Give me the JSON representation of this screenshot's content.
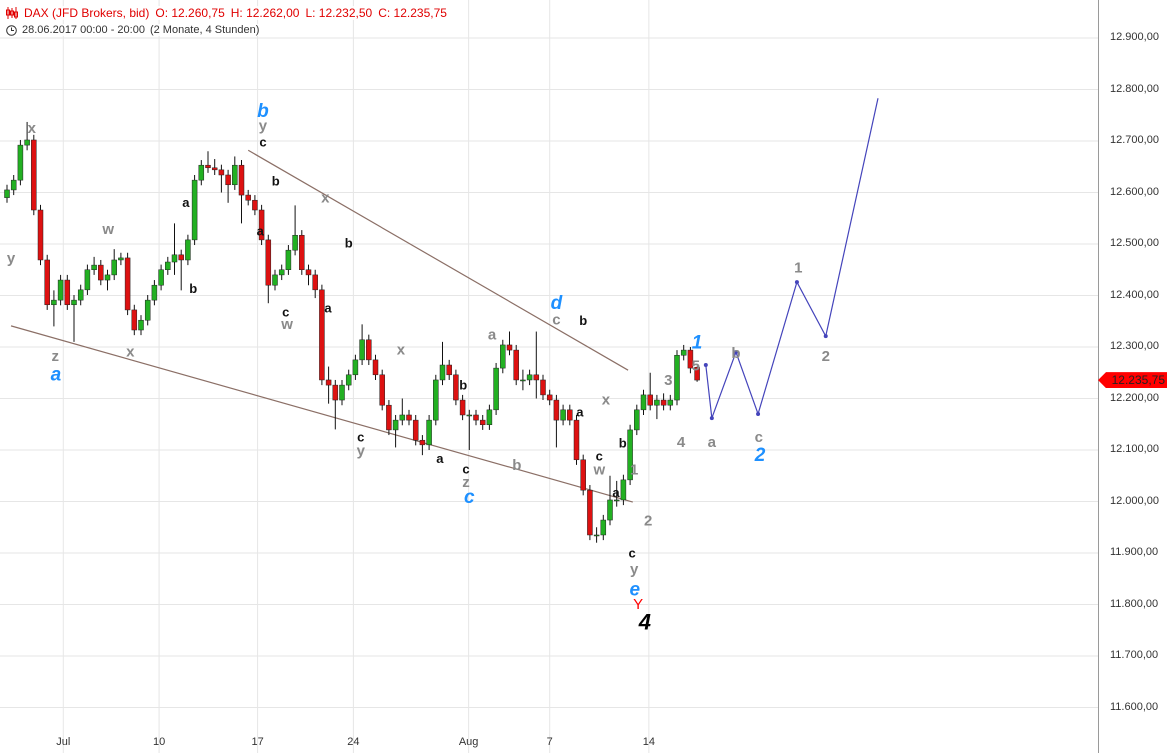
{
  "header": {
    "instrument": "DAX (JFD Brokers, bid)",
    "open": "O: 12.260,75",
    "high": "H: 12.262,00",
    "low": "L: 12.232,50",
    "close": "C: 12.235,75",
    "datetime": "28.06.2017 00:00 - 20:00",
    "range": "(2 Monate, 4 Stunden)",
    "instrument_icon": "candlestick-icon",
    "time_icon": "clock-icon"
  },
  "colors": {
    "up": "#22b022",
    "down": "#dd1111",
    "grid": "#e6e6e6",
    "trend": "#8b6f66",
    "projection": "#4444bb",
    "header": "#e00000",
    "price_tag": "#ff0000",
    "label_gray": "#8a8a8a",
    "label_black": "#111111",
    "label_blue": "#1e90ff",
    "label_red": "#ff0000"
  },
  "chart_data": {
    "type": "candlestick",
    "ylim": [
      11550,
      12950
    ],
    "y_ticks": [
      {
        "value": 12900,
        "label": "12.900,00"
      },
      {
        "value": 12800,
        "label": "12.800,00"
      },
      {
        "value": 12700,
        "label": "12.700,00"
      },
      {
        "value": 12600,
        "label": "12.600,00"
      },
      {
        "value": 12500,
        "label": "12.500,00"
      },
      {
        "value": 12400,
        "label": "12.400,00"
      },
      {
        "value": 12300,
        "label": "12.300,00"
      },
      {
        "value": 12200,
        "label": "12.200,00"
      },
      {
        "value": 12100,
        "label": "12.100,00"
      },
      {
        "value": 12000,
        "label": "12.000,00"
      },
      {
        "value": 11900,
        "label": "11.900,00"
      },
      {
        "value": 11800,
        "label": "11.800,00"
      },
      {
        "value": 11700,
        "label": "11.700,00"
      },
      {
        "value": 11600,
        "label": "11.600,00"
      }
    ],
    "x_ticks": [
      {
        "bar": 8.4,
        "label": "Jul"
      },
      {
        "bar": 22.7,
        "label": "10"
      },
      {
        "bar": 37.4,
        "label": "17"
      },
      {
        "bar": 51.7,
        "label": "24"
      },
      {
        "bar": 68.9,
        "label": "Aug"
      },
      {
        "bar": 81,
        "label": "7"
      },
      {
        "bar": 95.8,
        "label": "14"
      }
    ],
    "last_price": {
      "value": 12235.75,
      "label": "12.235,75"
    },
    "ohlc": [
      [
        12590,
        12615,
        12580,
        12605
      ],
      [
        12605,
        12634,
        12595,
        12624
      ],
      [
        12624,
        12702,
        12614,
        12692
      ],
      [
        12692,
        12737,
        12682,
        12702
      ],
      [
        12702,
        12712,
        12556,
        12566
      ],
      [
        12566,
        12576,
        12459,
        12469
      ],
      [
        12469,
        12479,
        12372,
        12382
      ],
      [
        12382,
        12410,
        12340,
        12391
      ],
      [
        12391,
        12440,
        12381,
        12430
      ],
      [
        12430,
        12440,
        12372,
        12382
      ],
      [
        12382,
        12401,
        12310,
        12391
      ],
      [
        12391,
        12421,
        12381,
        12411
      ],
      [
        12411,
        12460,
        12401,
        12450
      ],
      [
        12450,
        12475,
        12440,
        12459
      ],
      [
        12459,
        12469,
        12420,
        12430
      ],
      [
        12430,
        12450,
        12410,
        12440
      ],
      [
        12440,
        12490,
        12430,
        12469
      ],
      [
        12469,
        12483,
        12459,
        12473
      ],
      [
        12473,
        12483,
        12362,
        12372
      ],
      [
        12372,
        12382,
        12323,
        12333
      ],
      [
        12333,
        12362,
        12323,
        12352
      ],
      [
        12352,
        12401,
        12342,
        12391
      ],
      [
        12391,
        12430,
        12381,
        12420
      ],
      [
        12420,
        12460,
        12410,
        12450
      ],
      [
        12450,
        12475,
        12440,
        12465
      ],
      [
        12465,
        12540,
        12440,
        12479
      ],
      [
        12479,
        12489,
        12410,
        12469
      ],
      [
        12469,
        12518,
        12459,
        12508
      ],
      [
        12508,
        12634,
        12498,
        12624
      ],
      [
        12624,
        12663,
        12614,
        12653
      ],
      [
        12653,
        12680,
        12638,
        12648
      ],
      [
        12648,
        12665,
        12634,
        12644
      ],
      [
        12644,
        12654,
        12600,
        12634
      ],
      [
        12634,
        12644,
        12580,
        12615
      ],
      [
        12615,
        12670,
        12605,
        12653
      ],
      [
        12653,
        12663,
        12540,
        12595
      ],
      [
        12595,
        12605,
        12575,
        12585
      ],
      [
        12585,
        12595,
        12556,
        12566
      ],
      [
        12566,
        12576,
        12498,
        12508
      ],
      [
        12508,
        12518,
        12385,
        12420
      ],
      [
        12420,
        12450,
        12410,
        12440
      ],
      [
        12440,
        12460,
        12430,
        12450
      ],
      [
        12450,
        12498,
        12440,
        12488
      ],
      [
        12488,
        12575,
        12478,
        12517
      ],
      [
        12517,
        12527,
        12440,
        12450
      ],
      [
        12450,
        12460,
        12420,
        12440
      ],
      [
        12440,
        12450,
        12395,
        12411
      ],
      [
        12411,
        12421,
        12226,
        12236
      ],
      [
        12236,
        12262,
        12190,
        12226
      ],
      [
        12226,
        12236,
        12140,
        12197
      ],
      [
        12197,
        12236,
        12187,
        12226
      ],
      [
        12226,
        12256,
        12216,
        12246
      ],
      [
        12246,
        12285,
        12236,
        12275
      ],
      [
        12275,
        12344,
        12265,
        12314
      ],
      [
        12314,
        12324,
        12265,
        12275
      ],
      [
        12275,
        12285,
        12236,
        12246
      ],
      [
        12246,
        12256,
        12177,
        12187
      ],
      [
        12187,
        12197,
        12129,
        12139
      ],
      [
        12139,
        12168,
        12105,
        12158
      ],
      [
        12158,
        12200,
        12148,
        12168
      ],
      [
        12168,
        12178,
        12148,
        12158
      ],
      [
        12158,
        12168,
        12109,
        12119
      ],
      [
        12119,
        12129,
        12090,
        12110
      ],
      [
        12110,
        12168,
        12100,
        12158
      ],
      [
        12158,
        12246,
        12148,
        12236
      ],
      [
        12236,
        12310,
        12226,
        12265
      ],
      [
        12265,
        12275,
        12236,
        12246
      ],
      [
        12246,
        12256,
        12187,
        12197
      ],
      [
        12197,
        12207,
        12158,
        12168
      ],
      [
        12168,
        12178,
        12100,
        12168
      ],
      [
        12168,
        12178,
        12148,
        12158
      ],
      [
        12158,
        12168,
        12139,
        12149
      ],
      [
        12149,
        12188,
        12139,
        12178
      ],
      [
        12178,
        12269,
        12168,
        12259
      ],
      [
        12259,
        12314,
        12249,
        12304
      ],
      [
        12304,
        12330,
        12284,
        12294
      ],
      [
        12294,
        12304,
        12226,
        12236
      ],
      [
        12236,
        12256,
        12216,
        12236
      ],
      [
        12236,
        12256,
        12226,
        12246
      ],
      [
        12246,
        12330,
        12200,
        12236
      ],
      [
        12236,
        12246,
        12197,
        12207
      ],
      [
        12207,
        12217,
        12187,
        12197
      ],
      [
        12197,
        12207,
        12105,
        12158
      ],
      [
        12158,
        12188,
        12148,
        12178
      ],
      [
        12178,
        12188,
        12148,
        12158
      ],
      [
        12158,
        12168,
        12071,
        12081
      ],
      [
        12081,
        12091,
        12012,
        12022
      ],
      [
        12022,
        12032,
        11925,
        11935
      ],
      [
        11935,
        11950,
        11920,
        11935
      ],
      [
        11935,
        11974,
        11925,
        11964
      ],
      [
        11964,
        12050,
        11954,
        12003
      ],
      [
        12003,
        12040,
        11990,
        12003
      ],
      [
        12003,
        12052,
        11993,
        12042
      ],
      [
        12042,
        12149,
        12032,
        12139
      ],
      [
        12139,
        12188,
        12129,
        12178
      ],
      [
        12178,
        12217,
        12168,
        12207
      ],
      [
        12207,
        12250,
        12177,
        12187
      ],
      [
        12187,
        12207,
        12160,
        12197
      ],
      [
        12197,
        12210,
        12177,
        12187
      ],
      [
        12187,
        12207,
        12177,
        12197
      ],
      [
        12197,
        12294,
        12187,
        12284
      ],
      [
        12284,
        12304,
        12274,
        12294
      ],
      [
        12294,
        12300,
        12249,
        12259
      ],
      [
        12260.75,
        12262,
        12232.5,
        12235.75
      ]
    ],
    "trendlines": [
      {
        "from": {
          "bar": 36,
          "price": 12682
        },
        "to": {
          "bar": 92.7,
          "price": 12255
        }
      },
      {
        "from": {
          "bar": 0.6,
          "price": 12341
        },
        "to": {
          "bar": 93.4,
          "price": 11999
        }
      }
    ],
    "projection": [
      {
        "bar": 104.3,
        "price": 12265
      },
      {
        "bar": 105.2,
        "price": 12162
      },
      {
        "bar": 108.8,
        "price": 12290
      },
      {
        "bar": 112.1,
        "price": 12170
      },
      {
        "bar": 117.9,
        "price": 12426
      },
      {
        "bar": 122.2,
        "price": 12321
      },
      {
        "bar": 130,
        "price": 12783
      }
    ],
    "wave_labels": [
      {
        "text": "x",
        "bar": 3.7,
        "price": 12726,
        "style": "gray"
      },
      {
        "text": "y",
        "bar": 0.6,
        "price": 12473,
        "style": "gray"
      },
      {
        "text": "z",
        "bar": 7.2,
        "price": 12283,
        "style": "gray"
      },
      {
        "text": "a",
        "bar": 7.3,
        "price": 12248,
        "style": "blue"
      },
      {
        "text": "w",
        "bar": 15.1,
        "price": 12530,
        "style": "gray"
      },
      {
        "text": "x",
        "bar": 18.4,
        "price": 12292,
        "style": "gray"
      },
      {
        "text": "a",
        "bar": 26.7,
        "price": 12581,
        "style": "black"
      },
      {
        "text": "b",
        "bar": 27.8,
        "price": 12414,
        "style": "black"
      },
      {
        "text": "b",
        "bar": 38.2,
        "price": 12760,
        "style": "blue"
      },
      {
        "text": "y",
        "bar": 38.2,
        "price": 12731,
        "style": "gray"
      },
      {
        "text": "c",
        "bar": 38.2,
        "price": 12698,
        "style": "black"
      },
      {
        "text": "b",
        "bar": 40.1,
        "price": 12622,
        "style": "black"
      },
      {
        "text": "a",
        "bar": 37.8,
        "price": 12525,
        "style": "black"
      },
      {
        "text": "c",
        "bar": 41.6,
        "price": 12368,
        "style": "black"
      },
      {
        "text": "w",
        "bar": 41.8,
        "price": 12345,
        "style": "gray"
      },
      {
        "text": "x",
        "bar": 47.5,
        "price": 12591,
        "style": "gray"
      },
      {
        "text": "b",
        "bar": 51.0,
        "price": 12502,
        "style": "black"
      },
      {
        "text": "a",
        "bar": 47.9,
        "price": 12376,
        "style": "black"
      },
      {
        "text": "x",
        "bar": 58.8,
        "price": 12296,
        "style": "gray"
      },
      {
        "text": "c",
        "bar": 52.8,
        "price": 12125,
        "style": "black"
      },
      {
        "text": "y",
        "bar": 52.8,
        "price": 12100,
        "style": "gray"
      },
      {
        "text": "b",
        "bar": 68.1,
        "price": 12226,
        "style": "black"
      },
      {
        "text": "a",
        "bar": 64.6,
        "price": 12084,
        "style": "black"
      },
      {
        "text": "a",
        "bar": 72.4,
        "price": 12325,
        "style": "gray"
      },
      {
        "text": "c",
        "bar": 68.5,
        "price": 12063,
        "style": "black"
      },
      {
        "text": "z",
        "bar": 68.5,
        "price": 12038,
        "style": "gray"
      },
      {
        "text": "c",
        "bar": 69.0,
        "price": 12010,
        "style": "blue"
      },
      {
        "text": "b",
        "bar": 76.1,
        "price": 12071,
        "style": "gray"
      },
      {
        "text": "d",
        "bar": 82.0,
        "price": 12387,
        "style": "blue"
      },
      {
        "text": "c",
        "bar": 82.0,
        "price": 12354,
        "style": "gray"
      },
      {
        "text": "b",
        "bar": 86.0,
        "price": 12352,
        "style": "black"
      },
      {
        "text": "a",
        "bar": 85.5,
        "price": 12174,
        "style": "black"
      },
      {
        "text": "x",
        "bar": 89.4,
        "price": 12199,
        "style": "gray"
      },
      {
        "text": "b",
        "bar": 91.9,
        "price": 12114,
        "style": "black"
      },
      {
        "text": "c",
        "bar": 88.4,
        "price": 12088,
        "style": "black"
      },
      {
        "text": "w",
        "bar": 88.4,
        "price": 12063,
        "style": "gray"
      },
      {
        "text": "a",
        "bar": 90.9,
        "price": 12018,
        "style": "black"
      },
      {
        "text": "1",
        "bar": 93.6,
        "price": 12063,
        "style": "gray"
      },
      {
        "text": "2",
        "bar": 95.7,
        "price": 11964,
        "style": "gray"
      },
      {
        "text": "c",
        "bar": 93.3,
        "price": 11900,
        "style": "black"
      },
      {
        "text": "y",
        "bar": 93.6,
        "price": 11869,
        "style": "gray"
      },
      {
        "text": "e",
        "bar": 93.7,
        "price": 11830,
        "style": "blue"
      },
      {
        "text": "Y",
        "bar": 94.2,
        "price": 11801,
        "style": "red"
      },
      {
        "text": "4",
        "bar": 95.2,
        "price": 11766,
        "style": "big"
      },
      {
        "text": "3",
        "bar": 98.7,
        "price": 12236,
        "style": "gray"
      },
      {
        "text": "4",
        "bar": 100.6,
        "price": 12116,
        "style": "gray"
      },
      {
        "text": "1",
        "bar": 103.0,
        "price": 12310,
        "style": "blue"
      },
      {
        "text": "5",
        "bar": 102.8,
        "price": 12265,
        "style": "gray"
      },
      {
        "text": "a",
        "bar": 105.2,
        "price": 12116,
        "style": "gray"
      },
      {
        "text": "b",
        "bar": 108.8,
        "price": 12289,
        "style": "gray"
      },
      {
        "text": "c",
        "bar": 112.2,
        "price": 12126,
        "style": "gray"
      },
      {
        "text": "2",
        "bar": 112.4,
        "price": 12092,
        "style": "blue"
      },
      {
        "text": "1",
        "bar": 118.1,
        "price": 12455,
        "style": "gray"
      },
      {
        "text": "2",
        "bar": 122.2,
        "price": 12283,
        "style": "gray"
      }
    ]
  }
}
